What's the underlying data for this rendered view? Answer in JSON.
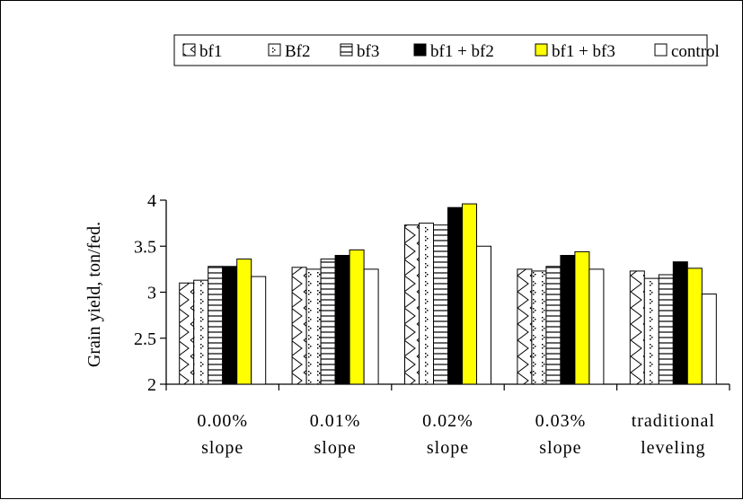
{
  "chart_data": {
    "type": "bar",
    "title": "",
    "xlabel": "",
    "ylabel": "Grain yield, ton/fed.",
    "ylim": [
      2,
      4
    ],
    "yticks": [
      "2",
      "2.5",
      "3",
      "3.5",
      "4"
    ],
    "grid": false,
    "legend_position": "top-right",
    "categories": [
      [
        "0.00%",
        "slope"
      ],
      [
        "0.01%",
        "slope"
      ],
      [
        "0.02%",
        "slope"
      ],
      [
        "0.03%",
        "slope"
      ],
      [
        "traditional",
        "leveling"
      ]
    ],
    "series": [
      {
        "name": "bf1",
        "pattern": "zigzag",
        "color": "#000000",
        "values": [
          3.1,
          3.27,
          3.73,
          3.25,
          3.23
        ]
      },
      {
        "name": "Bf2",
        "pattern": "dots",
        "color": "#000000",
        "values": [
          3.13,
          3.25,
          3.75,
          3.23,
          3.15
        ]
      },
      {
        "name": "bf3",
        "pattern": "horizontal",
        "color": "#000000",
        "values": [
          3.28,
          3.36,
          3.73,
          3.28,
          3.19
        ]
      },
      {
        "name": "bf1 + bf2",
        "pattern": "solid",
        "color": "#000000",
        "values": [
          3.28,
          3.4,
          3.92,
          3.4,
          3.33
        ]
      },
      {
        "name": "bf1 + bf3",
        "pattern": "solid",
        "color": "#ffff00",
        "values": [
          3.36,
          3.46,
          3.96,
          3.44,
          3.26
        ]
      },
      {
        "name": "control",
        "pattern": "solid",
        "color": "#ffffff",
        "values": [
          3.17,
          3.25,
          3.5,
          3.25,
          2.98
        ]
      }
    ]
  }
}
